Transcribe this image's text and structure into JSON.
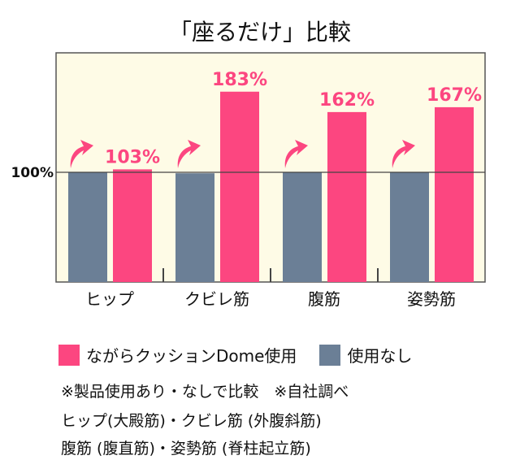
{
  "chart_data": {
    "type": "bar",
    "title": "「座るだけ」比較",
    "categories": [
      "ヒップ",
      "クビレ筋",
      "腹筋",
      "姿勢筋"
    ],
    "ytick_label": "100%",
    "ylim": [
      -13,
      223
    ],
    "reference_line": 100,
    "grid": false,
    "legend_placement": "bottom",
    "series": [
      {
        "name": "使用なし",
        "values": [
          100,
          99,
          100,
          100
        ],
        "color": "#6b7f96"
      },
      {
        "name": "ながらクッションDome使用",
        "values": [
          103,
          183,
          162,
          167
        ],
        "color": "#fc4680",
        "labels": [
          "103%",
          "183%",
          "162%",
          "167%"
        ]
      }
    ],
    "background": "#fefbe6"
  },
  "notes": [
    "※製品使用あり・なしで比較　※自社調べ",
    "ヒップ(大殿筋)・クビレ筋 (外腹斜筋)",
    "腹筋 (腹直筋)・姿勢筋 (脊柱起立筋)"
  ]
}
